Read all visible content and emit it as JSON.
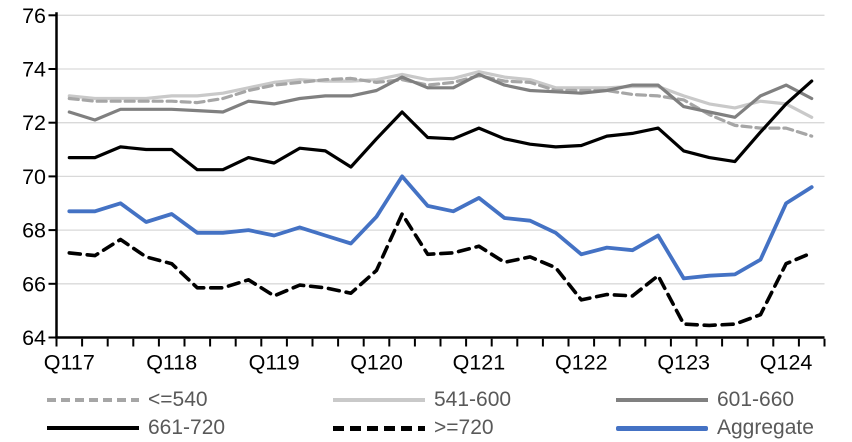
{
  "legend": {
    "items": [
      {
        "label": "<=540",
        "color": "#A6A6A6",
        "style": "dashed"
      },
      {
        "label": "541-600",
        "color": "#C9C9C9",
        "style": "solid"
      },
      {
        "label": "601-660",
        "color": "#808080",
        "style": "solid"
      },
      {
        "label": "661-720",
        "color": "#000000",
        "style": "solid"
      },
      {
        "label": ">=720",
        "color": "#000000",
        "style": "dashed"
      },
      {
        "label": "Aggregate",
        "color": "#4472C4",
        "style": "solid"
      }
    ]
  },
  "chart_data": {
    "type": "line",
    "title": "",
    "xlabel": "",
    "ylabel": "",
    "x_unit": "quarter",
    "x_start": "Q1 2017",
    "x_end": "Q2 2024",
    "n_points": 30,
    "x_tick_labels": [
      "Q117",
      "Q118",
      "Q119",
      "Q120",
      "Q121",
      "Q122",
      "Q123",
      "Q124"
    ],
    "x_tick_every": 4,
    "ylim": [
      64,
      76
    ],
    "y_tick_step": 2,
    "y_tick_labels": [
      "64",
      "66",
      "68",
      "70",
      "72",
      "74",
      "76"
    ],
    "grid": true,
    "gridline_color": "#D9D9D9",
    "legend_position": "bottom",
    "series": [
      {
        "name": "541-600",
        "color": "#C9C9C9",
        "dash": null,
        "width": 3.2,
        "values": [
          73.0,
          72.9,
          72.9,
          72.9,
          73.0,
          73.0,
          73.1,
          73.3,
          73.5,
          73.6,
          73.55,
          73.55,
          73.6,
          73.8,
          73.6,
          73.65,
          73.9,
          73.7,
          73.6,
          73.3,
          73.3,
          73.3,
          73.35,
          73.35,
          73.0,
          72.7,
          72.55,
          72.8,
          72.7,
          72.2
        ]
      },
      {
        "name": "<=540",
        "color": "#A6A6A6",
        "dash": [
          9,
          5
        ],
        "width": 3.2,
        "values": [
          72.9,
          72.8,
          72.8,
          72.8,
          72.8,
          72.75,
          72.9,
          73.2,
          73.4,
          73.5,
          73.6,
          73.65,
          73.5,
          73.6,
          73.4,
          73.5,
          73.75,
          73.55,
          73.5,
          73.2,
          73.2,
          73.2,
          73.05,
          73.0,
          72.85,
          72.3,
          71.9,
          71.8,
          71.8,
          71.5
        ]
      },
      {
        "name": "601-660",
        "color": "#808080",
        "dash": null,
        "width": 3.2,
        "values": [
          72.4,
          72.1,
          72.5,
          72.5,
          72.5,
          72.45,
          72.4,
          72.8,
          72.7,
          72.9,
          73.0,
          73.0,
          73.2,
          73.7,
          73.3,
          73.3,
          73.8,
          73.4,
          73.2,
          73.15,
          73.1,
          73.2,
          73.4,
          73.4,
          72.6,
          72.4,
          72.2,
          73.0,
          73.4,
          72.9
        ]
      },
      {
        "name": "661-720",
        "color": "#000000",
        "dash": null,
        "width": 3.2,
        "values": [
          70.7,
          70.7,
          71.1,
          71.0,
          71.0,
          70.25,
          70.25,
          70.7,
          70.5,
          71.05,
          70.95,
          70.35,
          71.4,
          72.4,
          71.45,
          71.4,
          71.8,
          71.4,
          71.2,
          71.1,
          71.15,
          71.5,
          71.6,
          71.8,
          70.95,
          70.7,
          70.55,
          71.65,
          72.7,
          73.55
        ]
      },
      {
        "name": ">=720",
        "color": "#000000",
        "dash": [
          11,
          7
        ],
        "width": 3.6,
        "values": [
          67.15,
          67.05,
          67.65,
          67.0,
          66.75,
          65.85,
          65.85,
          66.15,
          65.55,
          65.95,
          65.85,
          65.65,
          66.5,
          68.6,
          67.1,
          67.15,
          67.4,
          66.8,
          67.0,
          66.6,
          65.4,
          65.6,
          65.55,
          66.3,
          64.5,
          64.45,
          64.5,
          64.85,
          66.75,
          67.15
        ]
      },
      {
        "name": "Aggregate",
        "color": "#4472C4",
        "dash": null,
        "width": 3.8,
        "values": [
          68.7,
          68.7,
          69.0,
          68.3,
          68.6,
          67.9,
          67.9,
          68.0,
          67.8,
          68.1,
          67.8,
          67.5,
          68.5,
          70.0,
          68.9,
          68.7,
          69.2,
          68.45,
          68.35,
          67.9,
          67.1,
          67.35,
          67.25,
          67.8,
          66.2,
          66.3,
          66.35,
          66.9,
          69.0,
          69.6
        ]
      }
    ]
  }
}
